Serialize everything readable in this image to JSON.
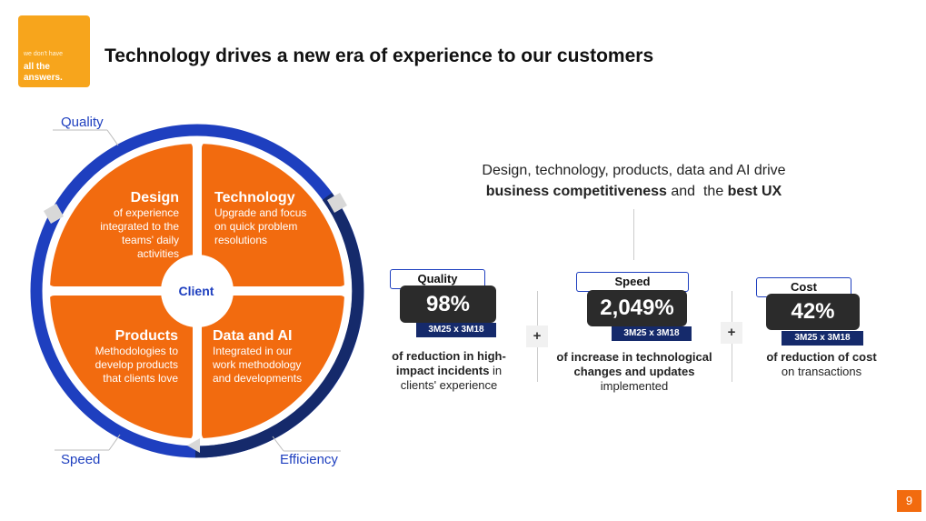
{
  "logo": {
    "line1": "we don't have",
    "line2": "all the answers."
  },
  "title": "Technology drives a new era of experience to our customers",
  "circle_labels": {
    "quality": "Quality",
    "speed": "Speed",
    "efficiency": "Efficiency"
  },
  "center_label": "Client",
  "quadrants": {
    "design": {
      "heading": "Design",
      "text": "of experience integrated to the teams' daily activities"
    },
    "technology": {
      "heading": "Technology",
      "text": "Upgrade and focus on quick problem resolutions"
    },
    "products": {
      "heading": "Products",
      "text": "Methodologies to develop products that clients love"
    },
    "data_ai": {
      "heading": "Data and AI",
      "text": "Integrated in our work methodology and developments"
    }
  },
  "headline": {
    "line1": "Design, technology, products, data and AI drive",
    "bold1": "business competitiveness",
    "mid": " and  the ",
    "bold2": "best UX"
  },
  "metrics": [
    {
      "label": "Quality",
      "value": "98%",
      "badge": "3M25 x 3M18",
      "desc_bold": "of reduction in high-impact incidents",
      "desc_normal": " in clients' experience"
    },
    {
      "label": "Speed",
      "value": "2,049%",
      "badge": "3M25 x 3M18",
      "desc_bold": "of increase in technological changes and updates",
      "desc_normal": " implemented"
    },
    {
      "label": "Cost",
      "value": "42%",
      "badge": "3M25 x 3M18",
      "desc_bold": "of reduction of cost",
      "desc_normal": " on transactions"
    }
  ],
  "plus_sign": "+",
  "page_number": "9",
  "colors": {
    "orange": "#f26b0f",
    "navy": "#152a6b",
    "blue": "#1e3fbf",
    "logo": "#f7a51c"
  }
}
